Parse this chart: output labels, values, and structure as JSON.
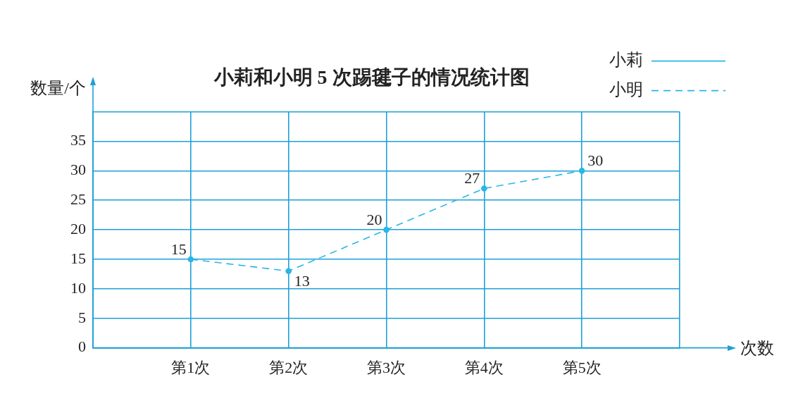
{
  "chart_data": {
    "type": "line",
    "title": "小莉和小明 5 次踢毽子的情况统计图",
    "xlabel": "次数",
    "ylabel": "数量/个",
    "categories": [
      "第1次",
      "第2次",
      "第3次",
      "第4次",
      "第5次"
    ],
    "series": [
      {
        "name": "小莉",
        "color": "#29b6e8",
        "values": [
          null,
          null,
          null,
          null,
          null
        ],
        "line_style": "solid"
      },
      {
        "name": "小明",
        "color": "#29b6e8",
        "values": [
          15,
          13,
          20,
          27,
          30
        ],
        "line_style": "dashed"
      }
    ],
    "ylim": [
      0,
      40
    ],
    "yticks": [
      0,
      5,
      10,
      15,
      20,
      25,
      30,
      35,
      {
        "value": 40,
        "label": null
      }
    ],
    "grid": true,
    "legend": "top right",
    "marker": "circle",
    "data_labels": true
  }
}
